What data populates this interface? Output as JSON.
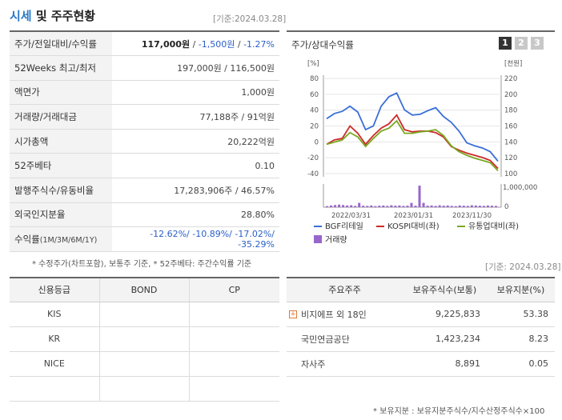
{
  "header": {
    "title_accent": "시세",
    "title_rest": " 및 주주현황",
    "date_tag": "[기준:2024.03.28]"
  },
  "info_rows": [
    {
      "label": "주가/전일대비/수익률",
      "price": "117,000원",
      "sep1": " / ",
      "change": "-1,500원",
      "sep2": " / ",
      "rate": "-1.27%"
    },
    {
      "label": "52Weeks 최고/최저",
      "value": "197,000원 / 116,500원"
    },
    {
      "label": "액면가",
      "value": "1,000원"
    },
    {
      "label": "거래량/거래대금",
      "value": "77,188주 / 91억원"
    },
    {
      "label": "시가총액",
      "value": "20,222억원"
    },
    {
      "label": "52주베타",
      "value": "0.10"
    },
    {
      "label": "발행주식수/유동비율",
      "value": "17,283,906주 / 46.57%"
    },
    {
      "label": "외국인지분율",
      "value": "28.80%"
    },
    {
      "label": "수익률",
      "label_sub": "(1M/3M/6M/1Y)",
      "value": "-12.62%/ -10.89%/ -17.02%/ -35.29%"
    }
  ],
  "info_note": "* 수정주가(차트포함), 보통주 기준, * 52주베타: 주간수익률 기준",
  "chart": {
    "title": "주가/상대수익률",
    "tabs": [
      "1",
      "2",
      "3"
    ],
    "left_unit": "[%]",
    "right_unit": "[천원]",
    "vol_label": "1,000,000",
    "vol_zero": "0"
  },
  "chart_data": {
    "type": "line",
    "x_labels": [
      "2022/03/31",
      "2023/01/31",
      "2023/11/30"
    ],
    "left_axis": {
      "ticks": [
        "80",
        "60",
        "40",
        "20",
        "0",
        "-20",
        "-40"
      ],
      "range": [
        -40,
        90
      ]
    },
    "right_axis": {
      "ticks": [
        "220",
        "200",
        "180",
        "160",
        "140",
        "120",
        "100"
      ],
      "range": [
        100,
        230
      ]
    },
    "series": [
      {
        "name": "BGF리테일",
        "color": "#3a6fd8",
        "values": [
          35,
          42,
          45,
          52,
          44,
          20,
          25,
          52,
          65,
          70,
          47,
          40,
          41,
          46,
          50,
          38,
          30,
          18,
          2,
          -2,
          -5,
          -10,
          -23
        ]
      },
      {
        "name": "KOSPI대비(좌)",
        "color": "#cc2a2a",
        "values": [
          0,
          6,
          8,
          25,
          15,
          0,
          12,
          22,
          28,
          40,
          20,
          17,
          18,
          18,
          16,
          10,
          -3,
          -8,
          -12,
          -15,
          -18,
          -22,
          -33
        ]
      },
      {
        "name": "유통업대비(좌)",
        "color": "#7aa820",
        "values": [
          0,
          3,
          6,
          16,
          10,
          -3,
          8,
          18,
          22,
          32,
          15,
          15,
          17,
          18,
          20,
          12,
          -2,
          -10,
          -15,
          -19,
          -22,
          -25,
          -36
        ]
      }
    ],
    "volume": {
      "name": "거래량",
      "color": "#9966cc",
      "values": [
        0.05,
        0.08,
        0.1,
        0.12,
        0.1,
        0.08,
        0.09,
        0.06,
        0.2,
        0.07,
        0.06,
        0.08,
        0.05,
        0.07,
        0.08,
        0.06,
        0.09,
        0.07,
        0.08,
        0.06,
        0.07,
        0.2,
        0.07,
        1.0,
        0.2,
        0.07,
        0.08,
        0.06,
        0.09,
        0.07,
        0.08,
        0.06,
        0.05,
        0.08,
        0.07,
        0.06,
        0.09,
        0.08,
        0.07,
        0.06,
        0.08,
        0.07,
        0.06
      ]
    }
  },
  "credit": {
    "headers": [
      "신용등급",
      "BOND",
      "CP"
    ],
    "rows": [
      [
        "KIS",
        "",
        ""
      ],
      [
        "KR",
        "",
        ""
      ],
      [
        "NICE",
        "",
        ""
      ],
      [
        "",
        "",
        ""
      ]
    ]
  },
  "holders": {
    "date_tag": "[기준: 2024.03.28]",
    "headers": [
      "주요주주",
      "보유주식수(보통)",
      "보유지분(%)"
    ],
    "rows": [
      {
        "name": "비지에프 외 18인",
        "shares": "9,225,833",
        "pct": "53.38",
        "expand": "+"
      },
      {
        "name": "국민연금공단",
        "shares": "1,423,234",
        "pct": "8.23"
      },
      {
        "name": "자사주",
        "shares": "8,891",
        "pct": "0.05"
      }
    ],
    "note": "* 보유지분 : 보유지분주식수/지수산정주식수×100"
  }
}
